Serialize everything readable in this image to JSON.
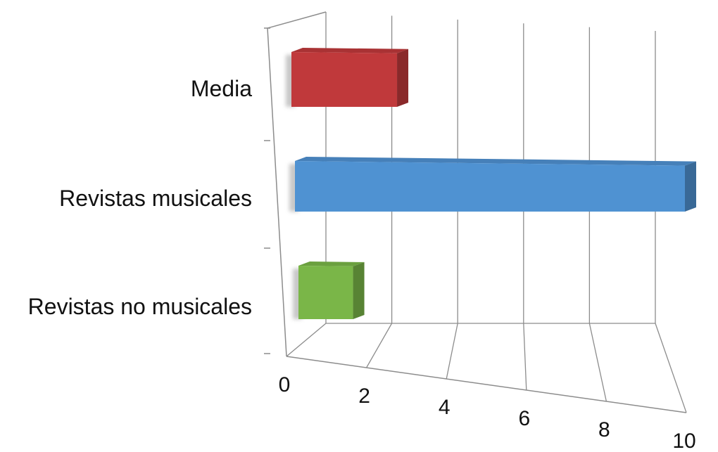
{
  "chart_data": {
    "type": "bar",
    "orientation": "horizontal",
    "style": "3d",
    "categories": [
      "Media",
      "Revistas musicales",
      "Revistas no musicales"
    ],
    "values": [
      2.8,
      10,
      1.7
    ],
    "colors": [
      "#c0393b",
      "#4f92d2",
      "#7ab648"
    ],
    "xlim": [
      0,
      10
    ],
    "x_ticks": [
      "0",
      "2",
      "4",
      "6",
      "8",
      "10"
    ],
    "grid": true,
    "title": "",
    "xlabel": "",
    "ylabel": ""
  }
}
